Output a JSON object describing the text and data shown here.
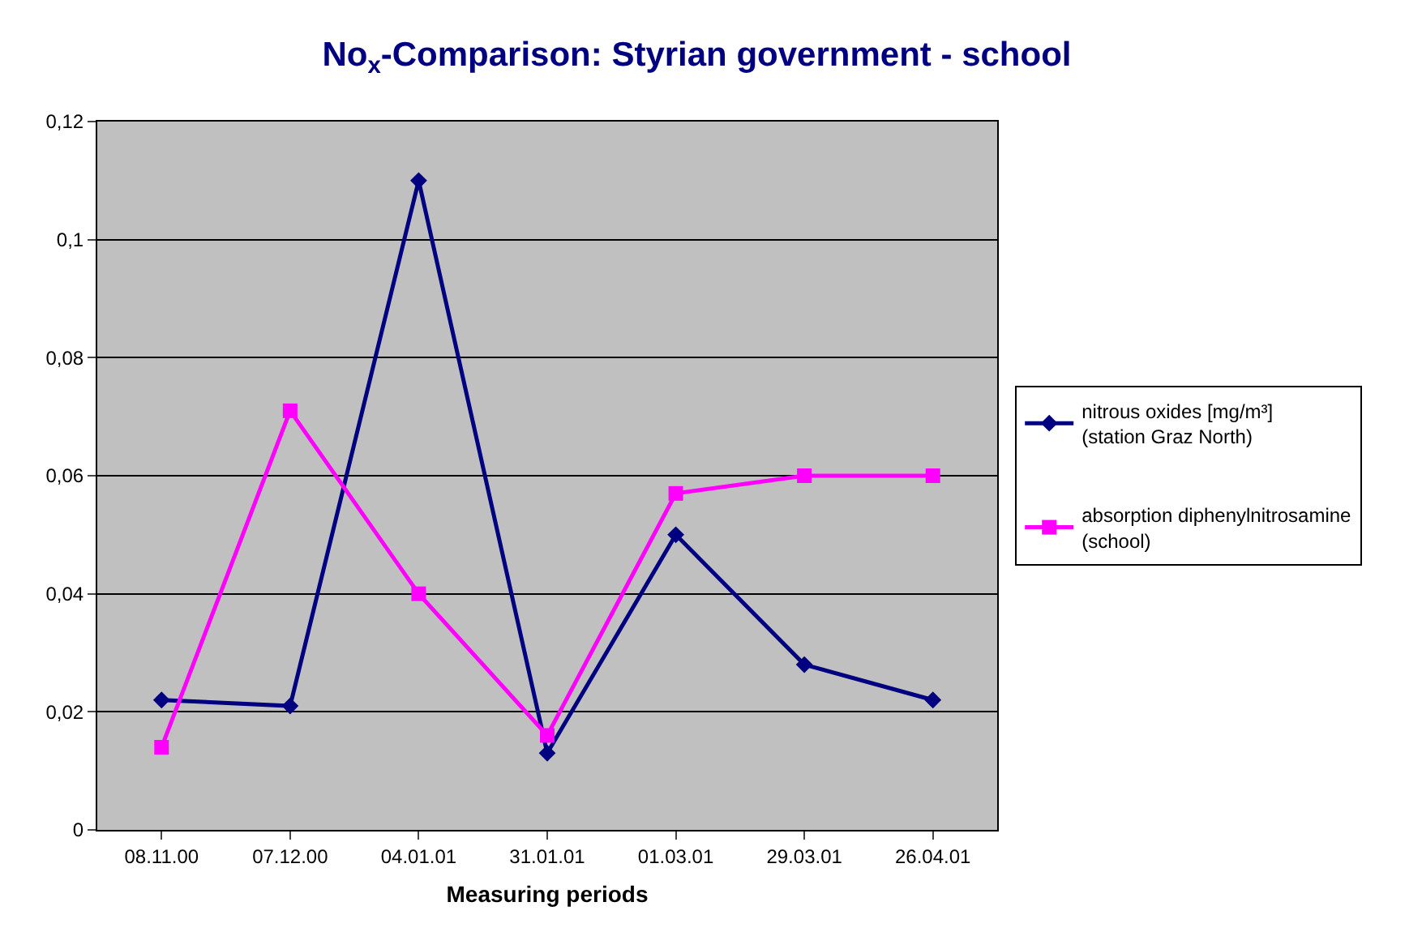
{
  "chart_data": {
    "type": "line",
    "title": "No$_{x}$-Comparison: Styrian government - school",
    "xlabel": "Measuring periods",
    "categories": [
      "08.11.00",
      "07.12.00",
      "04.01.01",
      "31.01.01",
      "01.03.01",
      "29.03.01",
      "26.04.01"
    ],
    "series": [
      {
        "name": "nitrous oxides [mg/m³] (station Graz North)",
        "color": "#000080",
        "marker": "diamond",
        "values": [
          0.022,
          0.021,
          0.11,
          0.013,
          0.05,
          0.028,
          0.022
        ]
      },
      {
        "name": "absorption diphenylnitrosamine (school)",
        "color": "#ff00ff",
        "marker": "square",
        "values": [
          0.014,
          0.071,
          0.04,
          0.016,
          0.057,
          0.06,
          0.06
        ]
      }
    ],
    "ylim": [
      0,
      0.12
    ],
    "yticks": [
      {
        "value": 0,
        "label": "0"
      },
      {
        "value": 0.02,
        "label": "0,02"
      },
      {
        "value": 0.04,
        "label": "0,04"
      },
      {
        "value": 0.06,
        "label": "0,06"
      },
      {
        "value": 0.08,
        "label": "0,08"
      },
      {
        "value": 0.1,
        "label": "0,1"
      },
      {
        "value": 0.12,
        "label": "0,12"
      }
    ],
    "grid": "y",
    "legend": "right",
    "line_style": "solid"
  }
}
